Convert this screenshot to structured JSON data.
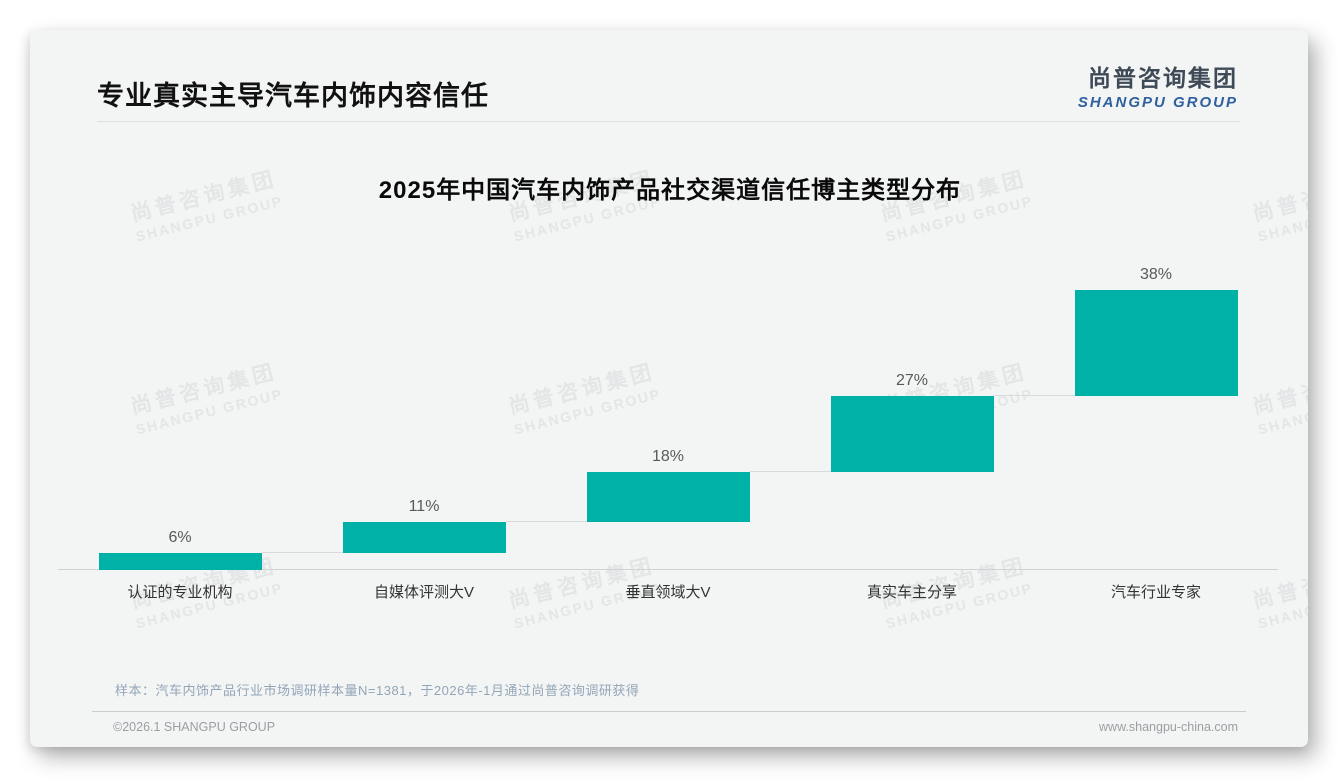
{
  "page": {
    "title": "专业真实主导汽车内饰内容信任",
    "logo": {
      "cn": "尚普咨询集团",
      "en": "SHANGPU GROUP"
    },
    "watermark": {
      "line1": "尚普咨询集团",
      "line2": "SHANGPU GROUP"
    },
    "footer": {
      "sample_note": "样本：汽车内饰产品行业市场调研样本量N=1381，于2026年-1月通过尚普咨询调研获得",
      "copyright": "©2026.1 SHANGPU GROUP",
      "website": "www.shangpu-china.com"
    }
  },
  "chart_data": {
    "type": "bar",
    "subtype": "waterfall-staircase",
    "title": "2025年中国汽车内饰产品社交渠道信任博主类型分布",
    "categories": [
      "认证的专业机构",
      "自媒体评测大V",
      "垂直领域大V",
      "真实车主分享",
      "汽车行业专家"
    ],
    "values": [
      6,
      11,
      18,
      27,
      38
    ],
    "value_labels": [
      "6%",
      "11%",
      "18%",
      "27%",
      "38%"
    ],
    "cumulative": [
      6,
      17,
      35,
      62,
      100
    ],
    "unit": "%",
    "ylim": [
      0,
      100
    ],
    "bar_color": "#00B1A7",
    "grid": false,
    "legend": false,
    "value_label_position": "above-bar",
    "xlabel": "",
    "ylabel": ""
  }
}
